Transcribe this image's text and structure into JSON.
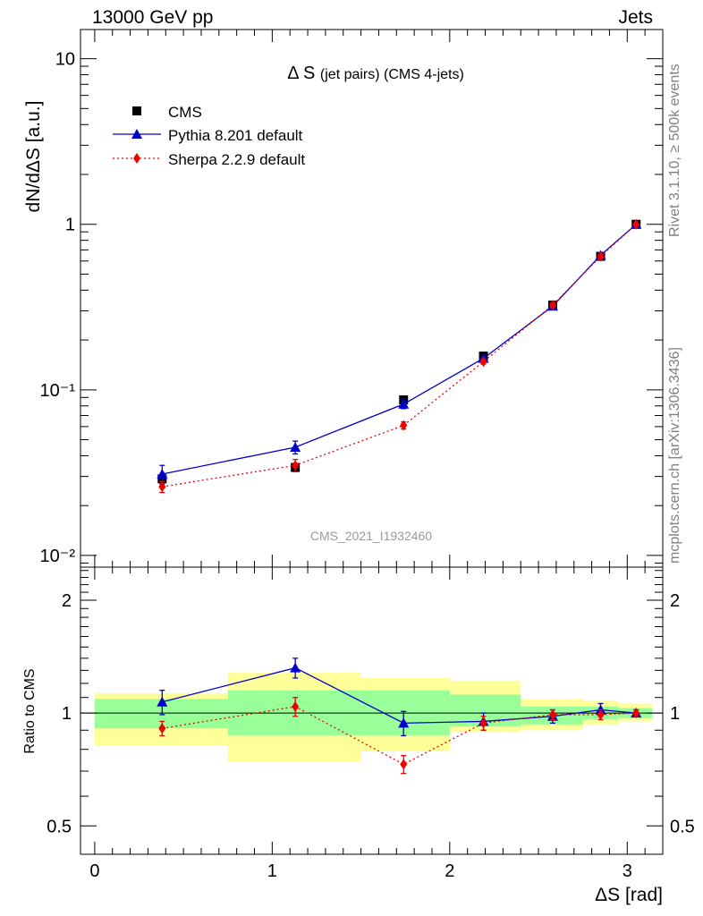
{
  "header": {
    "energy_label": "13000 GeV pp",
    "category_label": "Jets"
  },
  "side_text": {
    "rivet": "Rivet 3.1.10, ≥ 500k events",
    "mcplots": "mcplots.cern.ch [arXiv:1306.3436]"
  },
  "watermark": "CMS_2021_I1932460",
  "chart_data": [
    {
      "type": "line",
      "title": "Δ S (jet pairs) (CMS 4-jets)",
      "title_main": "Δ S",
      "title_sub": "(jet pairs) (CMS 4-jets)",
      "xlabel": "ΔS [rad]",
      "ylabel": "dN/dΔS [a.u.]",
      "yscale": "log",
      "xlim": [
        -0.08,
        3.2
      ],
      "ylim": [
        0.0085,
        15
      ],
      "yticks": [
        {
          "value": 0.01,
          "label": "10⁻²"
        },
        {
          "value": 0.1,
          "label": "10⁻¹"
        },
        {
          "value": 1,
          "label": "1"
        },
        {
          "value": 10,
          "label": "10"
        }
      ],
      "legend_position": "top-left",
      "series": [
        {
          "name": "CMS",
          "color": "#000000",
          "marker": "square",
          "x": [
            0.38,
            1.13,
            1.74,
            2.19,
            2.58,
            2.85,
            3.05
          ],
          "y": [
            0.029,
            0.034,
            0.087,
            0.16,
            0.325,
            0.64,
            1.0
          ]
        },
        {
          "name": "Pythia 8.201 default",
          "color": "#0000cc",
          "marker": "triangle",
          "x": [
            0.38,
            1.13,
            1.74,
            2.19,
            2.58,
            2.85,
            3.05
          ],
          "y": [
            0.031,
            0.045,
            0.082,
            0.155,
            0.32,
            0.65,
            1.0
          ],
          "err": [
            0.004,
            0.004,
            0.005,
            0.005,
            0.01,
            0.02,
            0.0
          ]
        },
        {
          "name": "Sherpa 2.2.9 default",
          "color": "#ee0000",
          "marker": "diamond",
          "x": [
            0.38,
            1.13,
            1.74,
            2.19,
            2.58,
            2.85,
            3.05
          ],
          "y": [
            0.026,
            0.035,
            0.061,
            0.148,
            0.325,
            0.64,
            1.0
          ],
          "err": [
            0.002,
            0.003,
            0.003,
            0.005,
            0.01,
            0.02,
            0.0
          ]
        }
      ]
    },
    {
      "type": "line",
      "title": "",
      "xlabel": "ΔS [rad]",
      "ylabel": "Ratio to CMS",
      "yscale": "log",
      "xlim": [
        -0.08,
        3.2
      ],
      "ylim": [
        0.42,
        2.45
      ],
      "xticks": [
        0,
        1,
        2,
        3
      ],
      "yticks": [
        0.5,
        1,
        2
      ],
      "bands": {
        "edges": [
          0.0,
          0.75,
          1.5,
          2.0,
          2.4,
          2.75,
          2.95,
          3.14
        ],
        "green_lo": [
          0.91,
          0.87,
          0.87,
          0.92,
          0.93,
          0.96,
          0.97
        ],
        "green_hi": [
          1.09,
          1.15,
          1.15,
          1.12,
          1.04,
          1.04,
          1.03
        ],
        "yellow_lo": [
          0.82,
          0.74,
          0.79,
          0.89,
          0.9,
          0.93,
          0.95
        ],
        "yellow_hi": [
          1.13,
          1.28,
          1.24,
          1.22,
          1.09,
          1.08,
          1.06
        ]
      },
      "series": [
        {
          "name": "Pythia 8.201 default",
          "color": "#0000cc",
          "marker": "triangle",
          "x": [
            0.38,
            1.13,
            1.74,
            2.19,
            2.58,
            2.85,
            3.05
          ],
          "y": [
            1.07,
            1.32,
            0.94,
            0.95,
            0.98,
            1.02,
            1.0
          ],
          "err": [
            0.08,
            0.08,
            0.07,
            0.05,
            0.04,
            0.04,
            0.02
          ]
        },
        {
          "name": "Sherpa 2.2.9 default",
          "color": "#ee0000",
          "marker": "diamond",
          "x": [
            0.38,
            1.13,
            1.74,
            2.19,
            2.58,
            2.85,
            3.05
          ],
          "y": [
            0.91,
            1.04,
            0.73,
            0.94,
            0.99,
            0.99,
            1.0
          ],
          "err": [
            0.04,
            0.06,
            0.04,
            0.04,
            0.03,
            0.03,
            0.02
          ]
        }
      ]
    }
  ]
}
